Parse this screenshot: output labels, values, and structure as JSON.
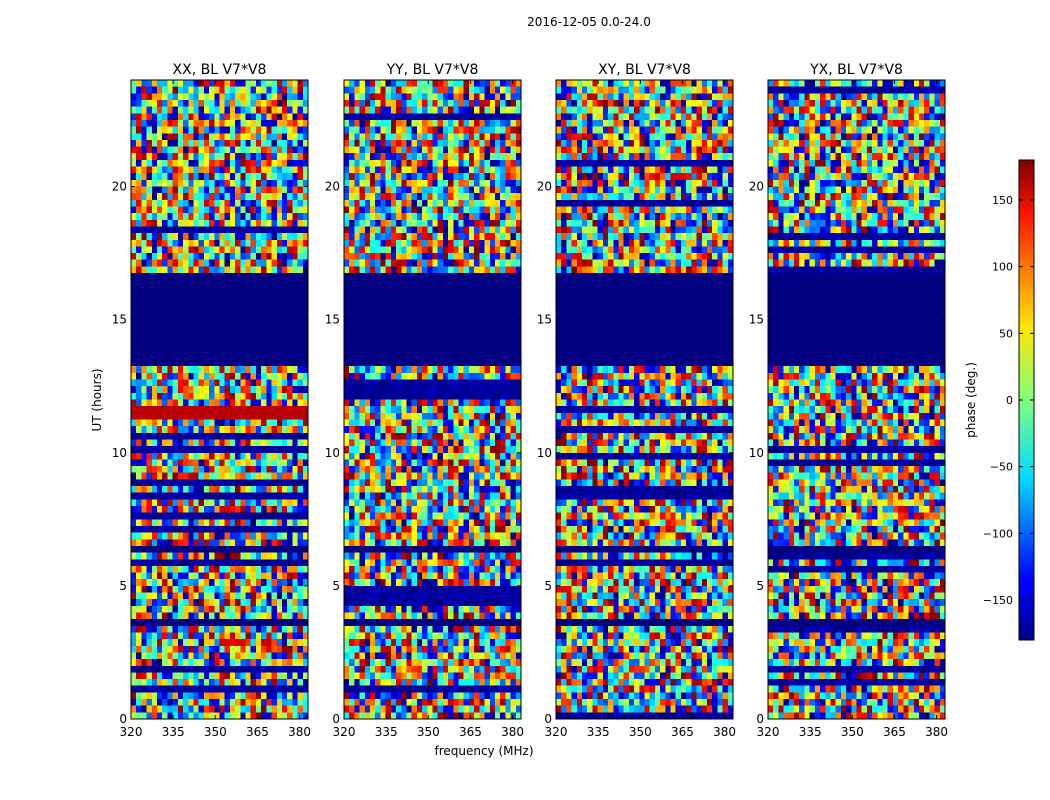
{
  "chart_data": {
    "type": "heatmap",
    "suptitle": "2016-12-05 0.0-24.0",
    "xlabel": "frequency (MHz)",
    "ylabel": "UT (hours)",
    "xlim": [
      320,
      383
    ],
    "ylim": [
      0,
      24
    ],
    "xticks": [
      320,
      335,
      350,
      365,
      380
    ],
    "yticks": [
      0,
      5,
      10,
      15,
      20
    ],
    "colorbar": {
      "label": "phase (deg.)",
      "range": [
        -180,
        180
      ],
      "ticks": [
        -150,
        -100,
        -50,
        0,
        50,
        100,
        150
      ],
      "colormap": "jet",
      "ticklabels": [
        "−150",
        "−100",
        "−50",
        "0",
        "50",
        "100",
        "150"
      ]
    },
    "panels": [
      {
        "title": "XX, BL V7*V8",
        "polarization": "XX",
        "baseline": "V7*V8"
      },
      {
        "title": "YY, BL V7*V8",
        "polarization": "YY",
        "baseline": "V7*V8"
      },
      {
        "title": "XY, BL V7*V8",
        "polarization": "XY",
        "baseline": "V7*V8"
      },
      {
        "title": "YX, BL V7*V8",
        "polarization": "YX",
        "baseline": "V7*V8"
      }
    ],
    "uniform_bands": [
      {
        "ut_start": 13.3,
        "ut_end": 16.7,
        "phase": -180,
        "note": "no data (solid dark blue)"
      },
      {
        "ut_start": 3.45,
        "ut_end": 3.85,
        "phase": -180
      },
      {
        "ut_start": 6.2,
        "ut_end": 6.5,
        "phase": -180
      },
      {
        "ut_start": 9.95,
        "ut_end": 10.1,
        "phase": -180
      },
      {
        "ut_start": 20.75,
        "ut_end": 20.85,
        "phase": -180
      },
      {
        "ut_start": 21.9,
        "ut_end": 22.0,
        "phase": -180
      },
      {
        "ut_start": 11.35,
        "ut_end": 11.65,
        "phase": 160,
        "panels": [
          "XX"
        ]
      }
    ]
  }
}
